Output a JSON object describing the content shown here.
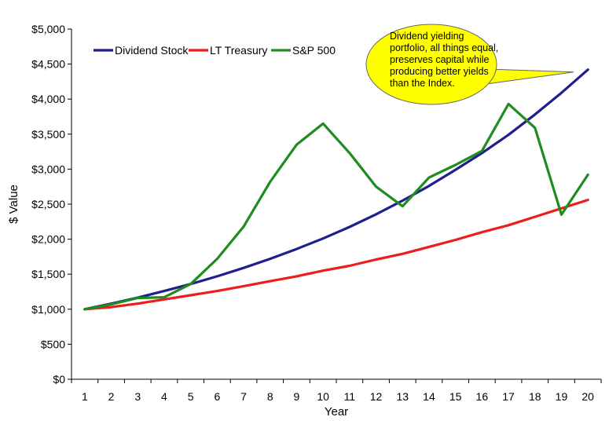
{
  "chart_data": {
    "type": "line",
    "title": "",
    "xlabel": "Year",
    "ylabel": "$ Value",
    "x": [
      1,
      2,
      3,
      4,
      5,
      6,
      7,
      8,
      9,
      10,
      11,
      12,
      13,
      14,
      15,
      16,
      17,
      18,
      19,
      20
    ],
    "ylim": [
      0,
      5000
    ],
    "y_tick_step": 500,
    "y_tick_labels": [
      "$0",
      "$500",
      "$1,000",
      "$1,500",
      "$2,000",
      "$2,500",
      "$3,000",
      "$3,500",
      "$4,000",
      "$4,500",
      "$5,000"
    ],
    "grid": false,
    "legend_position": "top-left",
    "series": [
      {
        "name": "Dividend Stock",
        "color": "#1f1f8f",
        "values": [
          1000,
          1080,
          1165,
          1260,
          1360,
          1470,
          1590,
          1720,
          1860,
          2010,
          2175,
          2355,
          2550,
          2760,
          2990,
          3230,
          3490,
          3780,
          4090,
          4420
        ]
      },
      {
        "name": "LT Treasury",
        "color": "#ee1c1c",
        "values": [
          1000,
          1030,
          1080,
          1140,
          1200,
          1260,
          1330,
          1400,
          1470,
          1550,
          1620,
          1710,
          1790,
          1890,
          1990,
          2100,
          2200,
          2320,
          2440,
          2560
        ]
      },
      {
        "name": "S&P 500",
        "color": "#1f8c1f",
        "values": [
          1000,
          1070,
          1160,
          1170,
          1360,
          1720,
          2180,
          2820,
          3350,
          3650,
          3230,
          2750,
          2470,
          2880,
          3060,
          3260,
          3930,
          3590,
          2350,
          2920
        ]
      }
    ],
    "annotation": {
      "lines": [
        "Dividend yielding",
        "portfolio, all things equal,",
        "preserves capital while",
        "producing better yields",
        "than the Index."
      ],
      "fill": "#ffff00",
      "points_to": {
        "x": 20,
        "y": 4420
      }
    }
  }
}
